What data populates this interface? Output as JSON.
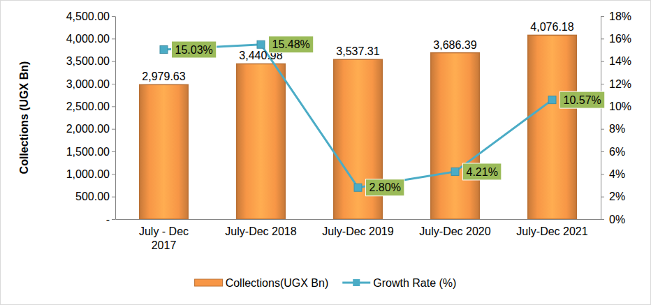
{
  "chart_data": {
    "type": "bar",
    "y_label": "Collections (UGX Bn)",
    "categories": [
      "July - Dec 2017",
      "July-Dec 2018",
      "July-Dec 2019",
      "July-Dec 2020",
      "July-Dec 2021"
    ],
    "series": [
      {
        "name": "Collections(UGX Bn)",
        "type": "bar",
        "color": "#f79646",
        "values": [
          2979.63,
          3440.98,
          3537.31,
          3686.39,
          4076.18
        ],
        "value_labels": [
          "2,979.63",
          "3,440.98",
          "3,537.31",
          "3,686.39",
          "4,076.18"
        ]
      },
      {
        "name": "Growth Rate (%)",
        "type": "line",
        "axis": "y2",
        "color": "#4bacc6",
        "marker": "square",
        "values": [
          15.03,
          15.48,
          2.8,
          4.21,
          10.57
        ],
        "value_labels": [
          "15.03%",
          "15.48%",
          "2.80%",
          "4.21%",
          "10.57%"
        ]
      }
    ],
    "ylim": [
      0,
      4500
    ],
    "yticks": [
      {
        "value": 0,
        "label": "-"
      },
      {
        "value": 500,
        "label": "500.00"
      },
      {
        "value": 1000,
        "label": "1,000.00"
      },
      {
        "value": 1500,
        "label": "1,500.00"
      },
      {
        "value": 2000,
        "label": "2,000.00"
      },
      {
        "value": 2500,
        "label": "2,500.00"
      },
      {
        "value": 3000,
        "label": "3,000.00"
      },
      {
        "value": 3500,
        "label": "3,500.00"
      },
      {
        "value": 4000,
        "label": "4,000.00"
      },
      {
        "value": 4500,
        "label": "4,500.00"
      }
    ],
    "y2lim": [
      0,
      18
    ],
    "y2ticks": [
      {
        "value": 0,
        "label": "0%"
      },
      {
        "value": 2,
        "label": "2%"
      },
      {
        "value": 4,
        "label": "4%"
      },
      {
        "value": 6,
        "label": "6%"
      },
      {
        "value": 8,
        "label": "8%"
      },
      {
        "value": 10,
        "label": "10%"
      },
      {
        "value": 12,
        "label": "12%"
      },
      {
        "value": 14,
        "label": "14%"
      },
      {
        "value": 16,
        "label": "16%"
      },
      {
        "value": 18,
        "label": "18%"
      }
    ],
    "grid": false,
    "data_labels": true,
    "legend": "bottom"
  }
}
